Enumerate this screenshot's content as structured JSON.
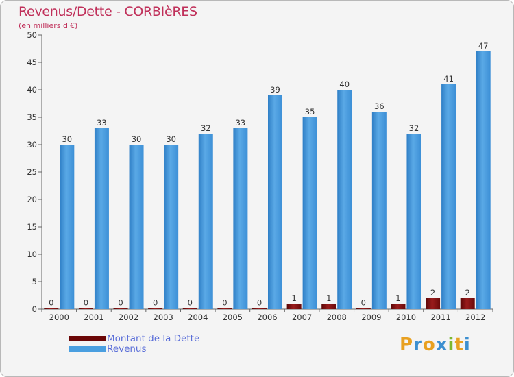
{
  "title": "Revenus/Dette - CORBIèRES",
  "subtitle": "(en milliers d'€)",
  "legend": [
    {
      "label": "Montant de la Dette",
      "color": "#7a0a0a"
    },
    {
      "label": "Revenus",
      "color": "#4a9fe0"
    }
  ],
  "logo": {
    "text": "Proxiti",
    "letters": [
      {
        "ch": "P",
        "color": "#e8a020"
      },
      {
        "ch": "r",
        "color": "#3c8fd0"
      },
      {
        "ch": "o",
        "color": "#e8a020"
      },
      {
        "ch": "x",
        "color": "#3c8fd0"
      },
      {
        "ch": "i",
        "color": "#7cb82f"
      },
      {
        "ch": "t",
        "color": "#e8a020"
      },
      {
        "ch": "i",
        "color": "#3c8fd0"
      }
    ]
  },
  "chart_data": {
    "type": "bar",
    "title": "Revenus/Dette - CORBIèRES",
    "subtitle": "(en milliers d'€)",
    "categories": [
      "2000",
      "2001",
      "2002",
      "2003",
      "2004",
      "2005",
      "2006",
      "2007",
      "2008",
      "2009",
      "2010",
      "2011",
      "2012"
    ],
    "series": [
      {
        "name": "Montant de la Dette",
        "color": "#7a0a0a",
        "values": [
          0,
          0,
          0,
          0,
          0,
          0,
          0,
          1,
          1,
          0,
          1,
          2,
          2
        ]
      },
      {
        "name": "Revenus",
        "color": "#4a9fe0",
        "values": [
          30,
          33,
          30,
          30,
          32,
          33,
          39,
          35,
          40,
          36,
          32,
          41,
          47
        ]
      }
    ],
    "yticks": [
      0,
      5,
      10,
      15,
      20,
      25,
      30,
      35,
      40,
      45,
      50
    ],
    "ylim": [
      0,
      50
    ],
    "grid": false,
    "legend_position": "bottom-left"
  }
}
